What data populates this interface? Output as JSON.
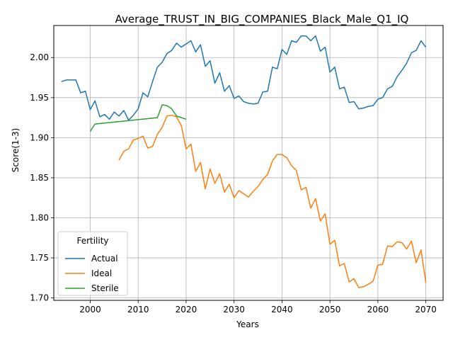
{
  "chart_data": {
    "type": "line",
    "title": "Average_TRUST_IN_BIG_COMPANIES_Black_Male_Q1_IQ",
    "xlabel": "Years",
    "ylabel": "Score(1-3)",
    "xlim": [
      1992.4,
      2073.6
    ],
    "ylim": [
      1.697,
      2.04
    ],
    "xticks": [
      2000,
      2010,
      2020,
      2030,
      2040,
      2050,
      2060,
      2070
    ],
    "yticks": [
      1.7,
      1.75,
      1.8,
      1.85,
      1.9,
      1.95,
      2.0
    ],
    "ytick_labels": [
      "1.70",
      "1.75",
      "1.80",
      "1.85",
      "1.90",
      "1.95",
      "2.00"
    ],
    "grid": true,
    "legend": {
      "title": "Fertility",
      "placement": "lower-left"
    },
    "series": [
      {
        "name": "Actual",
        "color": "#1f77b4",
        "x": [
          1994,
          1995,
          1996,
          1997,
          1998,
          1999,
          2000,
          2001,
          2002,
          2003,
          2004,
          2005,
          2006,
          2007,
          2008,
          2009,
          2010,
          2011,
          2012,
          2013,
          2014,
          2015,
          2016,
          2017,
          2018,
          2019,
          2020,
          2021,
          2022,
          2023,
          2024,
          2025,
          2026,
          2027,
          2028,
          2029,
          2030,
          2031,
          2032,
          2033,
          2034,
          2035,
          2036,
          2037,
          2038,
          2039,
          2040,
          2041,
          2042,
          2043,
          2044,
          2045,
          2046,
          2047,
          2048,
          2049,
          2050,
          2051,
          2052,
          2053,
          2054,
          2055,
          2056,
          2057,
          2058,
          2059,
          2060,
          2061,
          2062,
          2063,
          2064,
          2065,
          2066,
          2067,
          2068,
          2069,
          2070
        ],
        "values": [
          1.97,
          1.972,
          1.972,
          1.972,
          1.956,
          1.958,
          1.935,
          1.946,
          1.926,
          1.929,
          1.923,
          1.932,
          1.927,
          1.934,
          1.922,
          1.928,
          1.936,
          1.956,
          1.951,
          1.97,
          1.988,
          1.994,
          2.005,
          2.009,
          2.018,
          2.013,
          2.017,
          2.021,
          2.007,
          2.016,
          1.989,
          1.996,
          1.968,
          1.981,
          1.958,
          1.965,
          1.949,
          1.952,
          1.945,
          1.943,
          1.942,
          1.943,
          1.957,
          1.958,
          1.988,
          1.986,
          2.01,
          2.004,
          2.021,
          2.019,
          2.027,
          2.027,
          2.021,
          2.027,
          2.008,
          2.013,
          1.982,
          1.988,
          1.961,
          1.963,
          1.944,
          1.945,
          1.936,
          1.937,
          1.939,
          1.94,
          1.948,
          1.95,
          1.961,
          1.964,
          1.976,
          1.984,
          1.993,
          2.006,
          2.009,
          2.021,
          2.013
        ]
      },
      {
        "name": "Ideal",
        "color": "#ff7f0e",
        "x": [
          2006,
          2007,
          2008,
          2009,
          2010,
          2011,
          2012,
          2013,
          2014,
          2015,
          2016,
          2017,
          2018,
          2019,
          2020,
          2021,
          2022,
          2023,
          2024,
          2025,
          2026,
          2027,
          2028,
          2029,
          2030,
          2031,
          2032,
          2033,
          2034,
          2035,
          2036,
          2037,
          2038,
          2039,
          2040,
          2041,
          2042,
          2043,
          2044,
          2045,
          2046,
          2047,
          2048,
          2049,
          2050,
          2051,
          2052,
          2053,
          2054,
          2055,
          2056,
          2057,
          2058,
          2059,
          2060,
          2061,
          2062,
          2063,
          2064,
          2065,
          2066,
          2067,
          2068,
          2069,
          2070
        ],
        "values": [
          1.872,
          1.883,
          1.886,
          1.897,
          1.899,
          1.902,
          1.887,
          1.889,
          1.904,
          1.913,
          1.927,
          1.928,
          1.926,
          1.915,
          1.886,
          1.892,
          1.858,
          1.869,
          1.836,
          1.861,
          1.843,
          1.855,
          1.832,
          1.842,
          1.825,
          1.834,
          1.83,
          1.826,
          1.833,
          1.839,
          1.848,
          1.854,
          1.871,
          1.879,
          1.879,
          1.875,
          1.865,
          1.859,
          1.835,
          1.838,
          1.812,
          1.824,
          1.796,
          1.805,
          1.767,
          1.772,
          1.74,
          1.743,
          1.72,
          1.724,
          1.713,
          1.714,
          1.717,
          1.721,
          1.741,
          1.742,
          1.765,
          1.764,
          1.77,
          1.769,
          1.761,
          1.771,
          1.744,
          1.76,
          1.719
        ]
      },
      {
        "name": "Sterile",
        "color": "#2ca02c",
        "x": [
          2000,
          2001,
          2014,
          2015,
          2016,
          2017,
          2018,
          2019,
          2020
        ],
        "values": [
          1.908,
          1.917,
          1.925,
          1.941,
          1.94,
          1.936,
          1.927,
          1.925,
          1.923
        ]
      }
    ]
  }
}
